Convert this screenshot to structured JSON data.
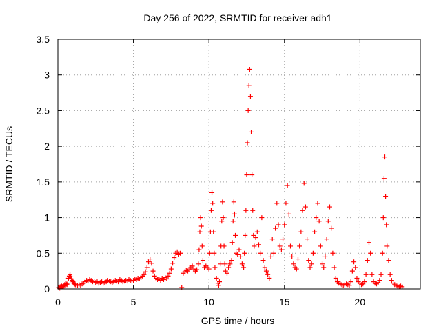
{
  "chart_data": {
    "type": "scatter",
    "title": "Day 256 of 2022, SRMTID for receiver adh1",
    "xlabel": "GPS time / hours",
    "ylabel": "SRMTID / TECUs",
    "xlim": [
      0,
      24
    ],
    "ylim": [
      0,
      3.5
    ],
    "grid": true,
    "marker": "+",
    "marker_color": "#ff0000",
    "x_ticks": [
      0,
      5,
      10,
      15,
      20
    ],
    "x_tick_labels": [
      "0",
      "5",
      "10",
      "15",
      "20"
    ],
    "y_ticks": [
      0,
      0.5,
      1,
      1.5,
      2,
      2.5,
      3,
      3.5
    ],
    "y_tick_labels": [
      "0",
      "0.5",
      "1",
      "1.5",
      "2",
      "2.5",
      "3",
      "3.5"
    ],
    "series": [
      {
        "name": "adh1",
        "points": [
          [
            0.05,
            0.02
          ],
          [
            0.1,
            0.01
          ],
          [
            0.15,
            0.03
          ],
          [
            0.2,
            0.01
          ],
          [
            0.25,
            0.04
          ],
          [
            0.3,
            0.03
          ],
          [
            0.35,
            0.05
          ],
          [
            0.4,
            0.04
          ],
          [
            0.45,
            0.06
          ],
          [
            0.5,
            0.05
          ],
          [
            0.55,
            0.07
          ],
          [
            0.6,
            0.06
          ],
          [
            0.65,
            0.08
          ],
          [
            0.7,
            0.15
          ],
          [
            0.75,
            0.18
          ],
          [
            0.8,
            0.2
          ],
          [
            0.85,
            0.17
          ],
          [
            0.9,
            0.14
          ],
          [
            0.95,
            0.12
          ],
          [
            1.0,
            0.1
          ],
          [
            1.05,
            0.08
          ],
          [
            1.1,
            0.07
          ],
          [
            1.15,
            0.06
          ],
          [
            1.2,
            0.05
          ],
          [
            1.3,
            0.05
          ],
          [
            1.4,
            0.06
          ],
          [
            1.5,
            0.05
          ],
          [
            1.6,
            0.07
          ],
          [
            1.7,
            0.08
          ],
          [
            1.8,
            0.1
          ],
          [
            1.9,
            0.12
          ],
          [
            2.0,
            0.11
          ],
          [
            2.1,
            0.13
          ],
          [
            2.2,
            0.12
          ],
          [
            2.3,
            0.1
          ],
          [
            2.4,
            0.11
          ],
          [
            2.5,
            0.09
          ],
          [
            2.6,
            0.1
          ],
          [
            2.7,
            0.08
          ],
          [
            2.8,
            0.09
          ],
          [
            2.9,
            0.1
          ],
          [
            3.0,
            0.08
          ],
          [
            3.1,
            0.09
          ],
          [
            3.2,
            0.1
          ],
          [
            3.3,
            0.12
          ],
          [
            3.4,
            0.11
          ],
          [
            3.5,
            0.1
          ],
          [
            3.6,
            0.09
          ],
          [
            3.7,
            0.1
          ],
          [
            3.8,
            0.12
          ],
          [
            3.9,
            0.11
          ],
          [
            4.0,
            0.1
          ],
          [
            4.1,
            0.13
          ],
          [
            4.2,
            0.12
          ],
          [
            4.3,
            0.1
          ],
          [
            4.4,
            0.11
          ],
          [
            4.5,
            0.12
          ],
          [
            4.6,
            0.11
          ],
          [
            4.7,
            0.13
          ],
          [
            4.8,
            0.12
          ],
          [
            4.9,
            0.11
          ],
          [
            5.0,
            0.12
          ],
          [
            5.1,
            0.14
          ],
          [
            5.2,
            0.13
          ],
          [
            5.3,
            0.15
          ],
          [
            5.4,
            0.14
          ],
          [
            5.5,
            0.16
          ],
          [
            5.6,
            0.18
          ],
          [
            5.7,
            0.2
          ],
          [
            5.8,
            0.24
          ],
          [
            5.9,
            0.3
          ],
          [
            6.0,
            0.38
          ],
          [
            6.1,
            0.42
          ],
          [
            6.2,
            0.36
          ],
          [
            6.3,
            0.25
          ],
          [
            6.4,
            0.18
          ],
          [
            6.5,
            0.15
          ],
          [
            6.6,
            0.13
          ],
          [
            6.7,
            0.14
          ],
          [
            6.8,
            0.12
          ],
          [
            6.9,
            0.15
          ],
          [
            7.0,
            0.13
          ],
          [
            7.1,
            0.16
          ],
          [
            7.2,
            0.14
          ],
          [
            7.3,
            0.18
          ],
          [
            7.4,
            0.22
          ],
          [
            7.5,
            0.28
          ],
          [
            7.6,
            0.36
          ],
          [
            7.7,
            0.44
          ],
          [
            7.8,
            0.5
          ],
          [
            7.9,
            0.52
          ],
          [
            8.0,
            0.48
          ],
          [
            8.1,
            0.5
          ],
          [
            8.2,
            0.02
          ],
          [
            8.3,
            0.22
          ],
          [
            8.4,
            0.24
          ],
          [
            8.5,
            0.26
          ],
          [
            8.6,
            0.25
          ],
          [
            8.7,
            0.28
          ],
          [
            8.8,
            0.3
          ],
          [
            8.9,
            0.32
          ],
          [
            9.0,
            0.28
          ],
          [
            9.1,
            0.25
          ],
          [
            9.2,
            0.27
          ],
          [
            9.3,
            0.35
          ],
          [
            9.35,
            0.55
          ],
          [
            9.4,
            0.8
          ],
          [
            9.45,
            1.0
          ],
          [
            9.5,
            0.88
          ],
          [
            9.55,
            0.6
          ],
          [
            9.6,
            0.4
          ],
          [
            9.7,
            0.3
          ],
          [
            9.8,
            0.32
          ],
          [
            9.9,
            0.3
          ],
          [
            10.0,
            0.28
          ],
          [
            10.05,
            0.5
          ],
          [
            10.1,
            0.8
          ],
          [
            10.15,
            1.1
          ],
          [
            10.2,
            1.35
          ],
          [
            10.25,
            1.2
          ],
          [
            10.3,
            0.8
          ],
          [
            10.35,
            0.5
          ],
          [
            10.4,
            0.3
          ],
          [
            10.5,
            0.15
          ],
          [
            10.6,
            0.08
          ],
          [
            10.65,
            0.05
          ],
          [
            10.7,
            0.1
          ],
          [
            10.75,
            0.35
          ],
          [
            10.8,
            0.6
          ],
          [
            10.85,
            0.95
          ],
          [
            10.9,
            1.22
          ],
          [
            10.95,
            1.0
          ],
          [
            11.0,
            0.6
          ],
          [
            11.05,
            0.35
          ],
          [
            11.1,
            0.25
          ],
          [
            11.2,
            0.22
          ],
          [
            11.3,
            0.3
          ],
          [
            11.4,
            0.35
          ],
          [
            11.5,
            0.4
          ],
          [
            11.55,
            0.65
          ],
          [
            11.6,
            0.95
          ],
          [
            11.65,
            1.22
          ],
          [
            11.7,
            1.05
          ],
          [
            11.75,
            0.75
          ],
          [
            11.8,
            0.5
          ],
          [
            11.9,
            0.48
          ],
          [
            12.0,
            0.55
          ],
          [
            12.1,
            0.45
          ],
          [
            12.2,
            0.35
          ],
          [
            12.3,
            0.3
          ],
          [
            12.35,
            0.5
          ],
          [
            12.4,
            0.75
          ],
          [
            12.45,
            1.1
          ],
          [
            12.5,
            1.6
          ],
          [
            12.55,
            2.05
          ],
          [
            12.6,
            2.5
          ],
          [
            12.65,
            2.85
          ],
          [
            12.7,
            3.08
          ],
          [
            12.75,
            2.7
          ],
          [
            12.8,
            2.2
          ],
          [
            12.85,
            1.6
          ],
          [
            12.9,
            1.1
          ],
          [
            12.95,
            0.75
          ],
          [
            13.0,
            0.6
          ],
          [
            13.1,
            0.72
          ],
          [
            13.2,
            0.8
          ],
          [
            13.3,
            0.62
          ],
          [
            13.4,
            0.5
          ],
          [
            13.5,
            1.0
          ],
          [
            13.6,
            0.4
          ],
          [
            13.7,
            0.3
          ],
          [
            13.8,
            0.25
          ],
          [
            13.9,
            0.2
          ],
          [
            14.0,
            0.15
          ],
          [
            14.1,
            0.45
          ],
          [
            14.2,
            0.7
          ],
          [
            14.3,
            0.5
          ],
          [
            14.4,
            0.85
          ],
          [
            14.5,
            1.2
          ],
          [
            14.6,
            0.9
          ],
          [
            14.7,
            0.6
          ],
          [
            14.8,
            0.55
          ],
          [
            14.9,
            0.7
          ],
          [
            15.0,
            0.9
          ],
          [
            15.1,
            1.2
          ],
          [
            15.2,
            1.45
          ],
          [
            15.3,
            1.05
          ],
          [
            15.4,
            0.6
          ],
          [
            15.5,
            0.45
          ],
          [
            15.6,
            0.35
          ],
          [
            15.7,
            0.3
          ],
          [
            15.8,
            0.28
          ],
          [
            15.9,
            0.42
          ],
          [
            16.0,
            0.6
          ],
          [
            16.1,
            0.8
          ],
          [
            16.2,
            1.1
          ],
          [
            16.3,
            1.48
          ],
          [
            16.4,
            1.15
          ],
          [
            16.5,
            0.7
          ],
          [
            16.6,
            0.4
          ],
          [
            16.7,
            0.3
          ],
          [
            16.8,
            0.35
          ],
          [
            16.9,
            0.5
          ],
          [
            17.0,
            0.8
          ],
          [
            17.1,
            1.0
          ],
          [
            17.2,
            1.2
          ],
          [
            17.3,
            0.95
          ],
          [
            17.4,
            0.6
          ],
          [
            17.5,
            0.35
          ],
          [
            17.6,
            0.3
          ],
          [
            17.7,
            0.45
          ],
          [
            17.8,
            0.7
          ],
          [
            17.9,
            0.95
          ],
          [
            18.0,
            1.15
          ],
          [
            18.1,
            0.85
          ],
          [
            18.2,
            0.5
          ],
          [
            18.3,
            0.3
          ],
          [
            18.4,
            0.15
          ],
          [
            18.5,
            0.1
          ],
          [
            18.6,
            0.08
          ],
          [
            18.7,
            0.07
          ],
          [
            18.8,
            0.06
          ],
          [
            18.9,
            0.05
          ],
          [
            19.0,
            0.06
          ],
          [
            19.1,
            0.07
          ],
          [
            19.2,
            0.06
          ],
          [
            19.3,
            0.05
          ],
          [
            19.4,
            0.1
          ],
          [
            19.5,
            0.25
          ],
          [
            19.6,
            0.38
          ],
          [
            19.7,
            0.3
          ],
          [
            19.8,
            0.15
          ],
          [
            19.9,
            0.1
          ],
          [
            20.0,
            0.08
          ],
          [
            20.1,
            0.06
          ],
          [
            20.2,
            0.07
          ],
          [
            20.3,
            0.1
          ],
          [
            20.4,
            0.2
          ],
          [
            20.5,
            0.4
          ],
          [
            20.6,
            0.65
          ],
          [
            20.7,
            0.5
          ],
          [
            20.8,
            0.2
          ],
          [
            20.9,
            0.1
          ],
          [
            21.0,
            0.08
          ],
          [
            21.1,
            0.07
          ],
          [
            21.2,
            0.09
          ],
          [
            21.3,
            0.12
          ],
          [
            21.4,
            0.2
          ],
          [
            21.5,
            0.5
          ],
          [
            21.55,
            1.0
          ],
          [
            21.6,
            1.55
          ],
          [
            21.65,
            1.85
          ],
          [
            21.7,
            1.3
          ],
          [
            21.75,
            0.9
          ],
          [
            21.8,
            0.6
          ],
          [
            21.9,
            0.4
          ],
          [
            22.0,
            0.2
          ],
          [
            22.1,
            0.12
          ],
          [
            22.2,
            0.08
          ],
          [
            22.3,
            0.06
          ],
          [
            22.4,
            0.05
          ],
          [
            22.5,
            0.04
          ],
          [
            22.6,
            0.03
          ],
          [
            22.7,
            0.04
          ],
          [
            22.8,
            0.03
          ]
        ]
      }
    ]
  }
}
